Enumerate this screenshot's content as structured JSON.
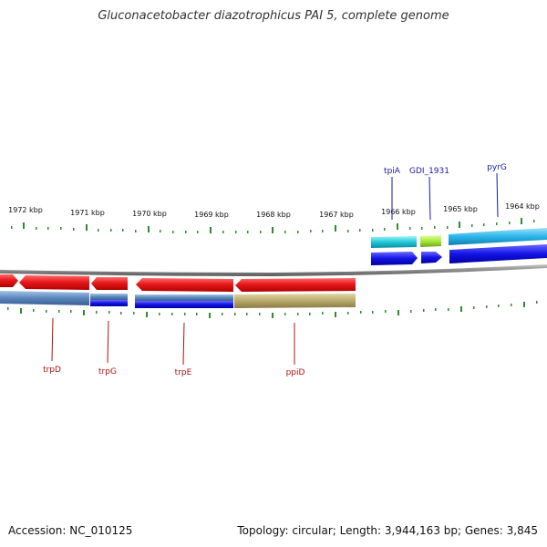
{
  "title": "Gluconacetobacter diazotrophicus PAI 5, complete genome",
  "footer": {
    "accession": "Accession: NC_010125",
    "summary": "Topology: circular; Length: 3,944,163 bp; Genes: 3,845"
  },
  "colors": {
    "backbone": "#8a8a8a",
    "tick": "#2e8b2e",
    "gene_label_top": "#1a1aa6",
    "gene_label_bottom": "#b01010",
    "red_feature": "#e8191b",
    "blue_feature": "#1414e6",
    "light_blue_feature": "#5a86bd",
    "tan_feature": "#b8a86a",
    "cyan_feature": "#20c8d8",
    "sky_feature": "#2bb6ea",
    "lime_feature": "#a8e83a"
  },
  "scale": {
    "ticks": [
      {
        "label": "1972 kbp"
      },
      {
        "label": "1971 kbp"
      },
      {
        "label": "1970 kbp"
      },
      {
        "label": "1969 kbp"
      },
      {
        "label": "1968 kbp"
      },
      {
        "label": "1967 kbp"
      },
      {
        "label": "1966 kbp"
      },
      {
        "label": "1965 kbp"
      },
      {
        "label": "1964 kbp"
      }
    ]
  },
  "genes_top": [
    {
      "name": "tpiA"
    },
    {
      "name": "GDI_1931"
    },
    {
      "name": "pyrG"
    }
  ],
  "genes_bottom": [
    {
      "name": "trpD"
    },
    {
      "name": "trpG"
    },
    {
      "name": "trpE"
    },
    {
      "name": "ppiD"
    }
  ]
}
